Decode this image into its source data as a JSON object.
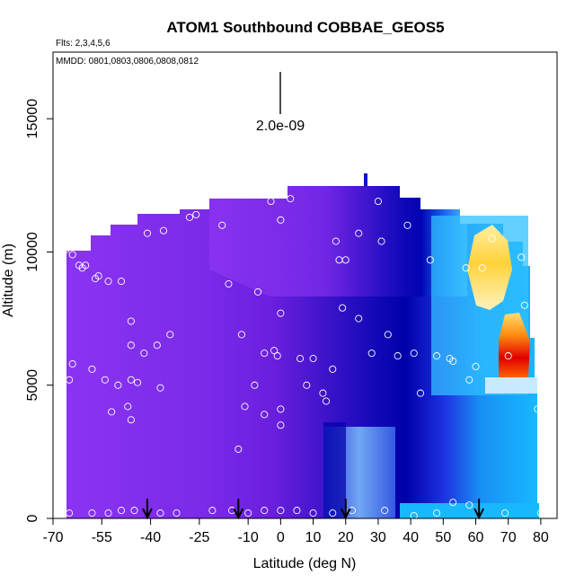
{
  "chart_data": {
    "type": "heatmap",
    "title": "ATOM1 Southbound COBBAE_GEOS5",
    "flights_note": "Flts: 2,3,4,5,6",
    "dates_note": "MMDD: 0801,0803,0806,0808,0812",
    "xlabel": "Latitude (deg N)",
    "ylabel": "Altitude (m)",
    "xlim": [
      -70,
      85
    ],
    "ylim": [
      0,
      17500
    ],
    "x_ticks": [
      -70,
      -55,
      -40,
      -25,
      -10,
      0,
      10,
      20,
      30,
      40,
      50,
      60,
      70,
      80
    ],
    "y_ticks": [
      0,
      5000,
      10000,
      15000
    ],
    "scale_bar_label": "2.0e-09",
    "arrow_latitudes": [
      -41,
      -13,
      20,
      61
    ],
    "samples": [
      [
        -65,
        10200
      ],
      [
        -66,
        10100
      ],
      [
        -64,
        9900
      ],
      [
        -62,
        9500
      ],
      [
        -61,
        9400
      ],
      [
        -60,
        9500
      ],
      [
        -57,
        9000
      ],
      [
        -56,
        9100
      ],
      [
        -53,
        8900
      ],
      [
        -49,
        8900
      ],
      [
        -64,
        5800
      ],
      [
        -65,
        5200
      ],
      [
        -58,
        5600
      ],
      [
        -54,
        5200
      ],
      [
        -52,
        4000
      ],
      [
        -50,
        5000
      ],
      [
        -47,
        4200
      ],
      [
        -46,
        3700
      ],
      [
        -44,
        5100
      ],
      [
        -42,
        6200
      ],
      [
        -38,
        6500
      ],
      [
        -37,
        4900
      ],
      [
        -34,
        6900
      ],
      [
        -46,
        5200
      ],
      [
        -46,
        6500
      ],
      [
        -46,
        7400
      ],
      [
        -46,
        11600
      ],
      [
        -41,
        10700
      ],
      [
        -36,
        10800
      ],
      [
        -28,
        11300
      ],
      [
        -26,
        11400
      ],
      [
        -18,
        11000
      ],
      [
        -16,
        8800
      ],
      [
        -12,
        6900
      ],
      [
        -11,
        4200
      ],
      [
        -7,
        8500
      ],
      [
        -5,
        6200
      ],
      [
        -8,
        5000
      ],
      [
        -5,
        3900
      ],
      [
        -2,
        6300
      ],
      [
        -1,
        6100
      ],
      [
        0,
        7700
      ],
      [
        0,
        4100
      ],
      [
        0,
        3500
      ],
      [
        0,
        11200
      ],
      [
        -3,
        11900
      ],
      [
        3,
        12000
      ],
      [
        6,
        6000
      ],
      [
        8,
        5000
      ],
      [
        10,
        6000
      ],
      [
        13,
        4700
      ],
      [
        14,
        4400
      ],
      [
        16,
        5600
      ],
      [
        17,
        10400
      ],
      [
        19,
        7900
      ],
      [
        18,
        9700
      ],
      [
        20,
        9700
      ],
      [
        24,
        7500
      ],
      [
        26,
        13100
      ],
      [
        24,
        10700
      ],
      [
        28,
        6200
      ],
      [
        30,
        11900
      ],
      [
        31,
        10400
      ],
      [
        33,
        6900
      ],
      [
        36,
        6100
      ],
      [
        39,
        11000
      ],
      [
        41,
        6200
      ],
      [
        43,
        4700
      ],
      [
        46,
        9700
      ],
      [
        48,
        6100
      ],
      [
        52,
        6000
      ],
      [
        53,
        5900
      ],
      [
        57,
        9400
      ],
      [
        58,
        5200
      ],
      [
        60,
        5700
      ],
      [
        62,
        9400
      ],
      [
        65,
        10500
      ],
      [
        70,
        6100
      ],
      [
        74,
        9800
      ],
      [
        75,
        8000
      ],
      [
        79,
        4100
      ],
      [
        80,
        3300
      ],
      [
        80,
        3200
      ],
      [
        -13,
        2600
      ],
      [
        -65,
        200
      ],
      [
        -58,
        200
      ],
      [
        -53,
        200
      ],
      [
        -49,
        300
      ],
      [
        -45,
        300
      ],
      [
        -37,
        200
      ],
      [
        -32,
        200
      ],
      [
        -21,
        300
      ],
      [
        -15,
        300
      ],
      [
        -10,
        200
      ],
      [
        -5,
        300
      ],
      [
        0,
        300
      ],
      [
        5,
        300
      ],
      [
        10,
        200
      ],
      [
        16,
        200
      ],
      [
        22,
        300
      ],
      [
        32,
        300
      ],
      [
        41,
        100
      ],
      [
        48,
        200
      ],
      [
        53,
        600
      ],
      [
        58,
        500
      ],
      [
        69,
        200
      ],
      [
        80,
        200
      ]
    ]
  }
}
